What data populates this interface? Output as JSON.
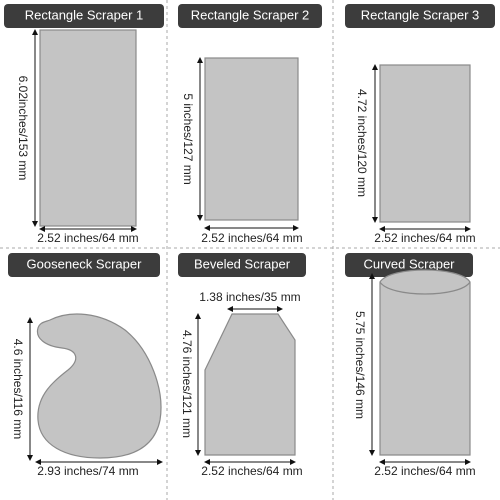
{
  "panels": [
    {
      "title": "Rectangle Scraper 1",
      "height_label": "6.02inches/153 mm",
      "width_label": "2.52 inches/64 mm"
    },
    {
      "title": "Rectangle Scraper 2",
      "height_label": "5 inches/127 mm",
      "width_label": "2.52 inches/64 mm"
    },
    {
      "title": "Rectangle Scraper 3",
      "height_label": "4.72 inches/120 mm",
      "width_label": "2.52 inches/64 mm"
    },
    {
      "title": "Gooseneck Scraper",
      "height_label": "4.6 inches/116 mm",
      "width_label": "2.93 inches/74 mm"
    },
    {
      "title": "Beveled Scraper",
      "top_label": "1.38 inches/35 mm",
      "height_label": "4.76 inches/121 mm",
      "width_label": "2.52 inches/64 mm"
    },
    {
      "title": "Curved Scraper",
      "height_label": "5.75 inches/146 mm",
      "width_label": "2.52 inches/64 mm"
    }
  ]
}
